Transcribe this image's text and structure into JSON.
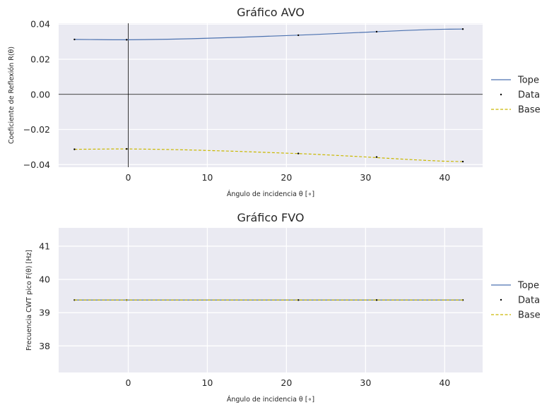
{
  "chart_data": [
    {
      "type": "line",
      "title": "Gráfico AVO",
      "xlabel": "Ángulo de incidencia θ [∘]",
      "ylabel": "Coeficiente de Reflexión R(θ)",
      "xlim": [
        -8.8,
        44.8
      ],
      "ylim": [
        -0.0415,
        0.0405
      ],
      "xticks": [
        0,
        10,
        20,
        30,
        40
      ],
      "yticks": [
        -0.04,
        -0.02,
        0.0,
        0.02,
        0.04
      ],
      "ytick_labels": [
        "−0.04",
        "−0.02",
        "0.00",
        "0.02",
        "0.04"
      ],
      "grid": true,
      "legend": "outside-right",
      "reference_lines": {
        "x": 0,
        "y": 0
      },
      "curve_x": [
        -6.8,
        -4,
        -2,
        0,
        2,
        5,
        8,
        11,
        14,
        17,
        20,
        23,
        26,
        29,
        32,
        35,
        38,
        40,
        42.3
      ],
      "series": [
        {
          "name": "Tope",
          "style": "solid",
          "color": "#4c72b0",
          "values": [
            0.0313,
            0.0312,
            0.0311,
            0.0311,
            0.0312,
            0.0314,
            0.0317,
            0.0321,
            0.0325,
            0.033,
            0.0335,
            0.034,
            0.0346,
            0.0352,
            0.0358,
            0.0364,
            0.0369,
            0.0371,
            0.0372
          ]
        },
        {
          "name": "Data",
          "style": "points",
          "color": "#000000",
          "x": [
            -6.8,
            -0.2,
            21.5,
            31.4,
            42.3
          ],
          "values": [
            0.0313,
            0.0311,
            0.0337,
            0.0357,
            0.0372
          ]
        },
        {
          "name": "Base",
          "style": "dashed",
          "color": "#c9b800",
          "values": [
            -0.0313,
            -0.0312,
            -0.0311,
            -0.0311,
            -0.0312,
            -0.0314,
            -0.0317,
            -0.0321,
            -0.0325,
            -0.033,
            -0.0335,
            -0.034,
            -0.0347,
            -0.0354,
            -0.0362,
            -0.037,
            -0.0377,
            -0.0381,
            -0.0383
          ]
        }
      ],
      "base_data_points": {
        "x": [
          -6.8,
          -0.2,
          21.5,
          31.4,
          42.3
        ],
        "values": [
          -0.0313,
          -0.0311,
          -0.0337,
          -0.0357,
          -0.0383
        ]
      }
    },
    {
      "type": "line",
      "title": "Gráfico FVO",
      "xlabel": "Ángulo de incidencia θ [∘]",
      "ylabel": "Frecuencia CWT pico F(θ) [Hz]",
      "xlim": [
        -8.8,
        44.8
      ],
      "ylim": [
        37.2,
        41.55
      ],
      "xticks": [
        0,
        10,
        20,
        30,
        40
      ],
      "yticks": [
        38,
        39,
        40,
        41
      ],
      "ytick_labels": [
        "38",
        "39",
        "40",
        "41"
      ],
      "grid": true,
      "legend": "outside-right",
      "curve_x": [
        -6.8,
        42.3
      ],
      "series": [
        {
          "name": "Tope",
          "style": "solid",
          "color": "#4c72b0",
          "values": [
            39.38,
            39.38
          ]
        },
        {
          "name": "Data",
          "style": "points",
          "color": "#000000",
          "x": [
            -6.8,
            -0.2,
            21.5,
            31.4,
            42.3
          ],
          "values": [
            39.38,
            39.38,
            39.38,
            39.38,
            39.38
          ]
        },
        {
          "name": "Base",
          "style": "dashed",
          "color": "#c9b800",
          "values": [
            39.38,
            39.38
          ]
        }
      ]
    }
  ]
}
